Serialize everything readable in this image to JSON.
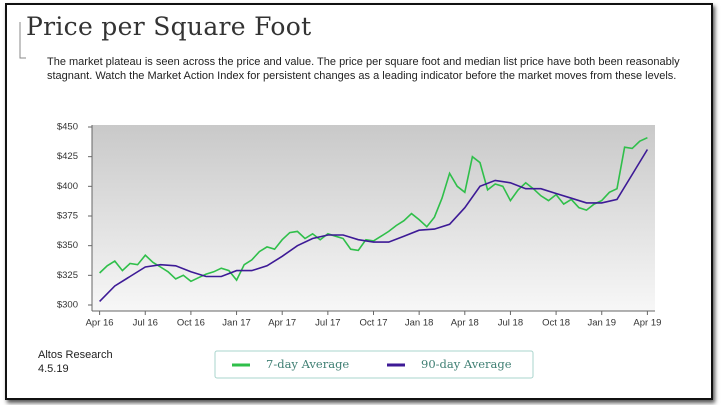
{
  "chart_data": {
    "type": "line",
    "title": "Price per Square Foot",
    "subtitle": "The market plateau is seen across the price and value. The price per square foot and median list price have both been reasonably stagnant. Watch the Market Action Index for persistent changes as a leading indicator before the market moves from these levels.",
    "source": "Altos Research",
    "date": "4.5.19",
    "xlim": [
      -0.5,
      36.5
    ],
    "xticks": [
      {
        "value": 0,
        "label": "Apr 16"
      },
      {
        "value": 3,
        "label": "Jul 16"
      },
      {
        "value": 6,
        "label": "Oct 16"
      },
      {
        "value": 9,
        "label": "Jan 17"
      },
      {
        "value": 12,
        "label": "Apr 17"
      },
      {
        "value": 15,
        "label": "Jul 17"
      },
      {
        "value": 18,
        "label": "Oct 17"
      },
      {
        "value": 21,
        "label": "Jan 18"
      },
      {
        "value": 24,
        "label": "Apr 18"
      },
      {
        "value": 27,
        "label": "Jul 18"
      },
      {
        "value": 30,
        "label": "Oct 18"
      },
      {
        "value": 33,
        "label": "Jan 19"
      },
      {
        "value": 36,
        "label": "Apr 19"
      }
    ],
    "ylim": [
      300,
      450
    ],
    "yticks": [
      {
        "value": 300,
        "label": "$300"
      },
      {
        "value": 325,
        "label": "$325"
      },
      {
        "value": 350,
        "label": "$350"
      },
      {
        "value": 375,
        "label": "$375"
      },
      {
        "value": 400,
        "label": "$400"
      },
      {
        "value": 425,
        "label": "$425"
      },
      {
        "value": 450,
        "label": "$450"
      }
    ],
    "grid": false,
    "series": [
      {
        "name": "7-day Average",
        "color": "#2fbf4a",
        "x": [
          0,
          0.5,
          1,
          1.5,
          2,
          2.5,
          3,
          3.5,
          4,
          4.5,
          5,
          5.5,
          6,
          6.5,
          7,
          7.5,
          8,
          8.5,
          9,
          9.5,
          10,
          10.5,
          11,
          11.5,
          12,
          12.5,
          13,
          13.5,
          14,
          14.5,
          15,
          15.5,
          16,
          16.5,
          17,
          17.5,
          18,
          18.5,
          19,
          19.5,
          20,
          20.5,
          21,
          21.5,
          22,
          22.5,
          23,
          23.5,
          24,
          24.5,
          25,
          25.5,
          26,
          26.5,
          27,
          27.5,
          28,
          28.5,
          29,
          29.5,
          30,
          30.5,
          31,
          31.5,
          32,
          32.5,
          33,
          33.5,
          34,
          34.5,
          35,
          35.5,
          36
        ],
        "values": [
          327,
          333,
          337,
          329,
          335,
          334,
          342,
          336,
          332,
          328,
          322,
          325,
          320,
          323,
          326,
          328,
          331,
          329,
          321,
          334,
          338,
          345,
          349,
          347,
          355,
          361,
          362,
          356,
          360,
          355,
          360,
          358,
          356,
          347,
          346,
          355,
          354,
          358,
          362,
          367,
          371,
          377,
          372,
          366,
          374,
          390,
          411,
          400,
          395,
          425,
          420,
          397,
          402,
          400,
          388,
          397,
          403,
          398,
          392,
          388,
          393,
          385,
          389,
          382,
          380,
          385,
          388,
          395,
          398,
          433,
          432,
          438,
          441
        ]
      },
      {
        "name": "90-day Average",
        "color": "#3d1a96",
        "x": [
          0,
          1,
          2,
          3,
          4,
          5,
          6,
          7,
          8,
          9,
          10,
          11,
          12,
          13,
          14,
          15,
          16,
          17,
          18,
          19,
          20,
          21,
          22,
          23,
          24,
          25,
          26,
          27,
          28,
          29,
          30,
          31,
          32,
          33,
          34,
          35,
          36
        ],
        "values": [
          303,
          316,
          324,
          332,
          334,
          333,
          328,
          324,
          324,
          329,
          329,
          333,
          341,
          350,
          356,
          359,
          359,
          355,
          353,
          353,
          358,
          363,
          364,
          368,
          382,
          400,
          405,
          403,
          398,
          398,
          394,
          390,
          386,
          386,
          389,
          410,
          431
        ]
      }
    ]
  }
}
